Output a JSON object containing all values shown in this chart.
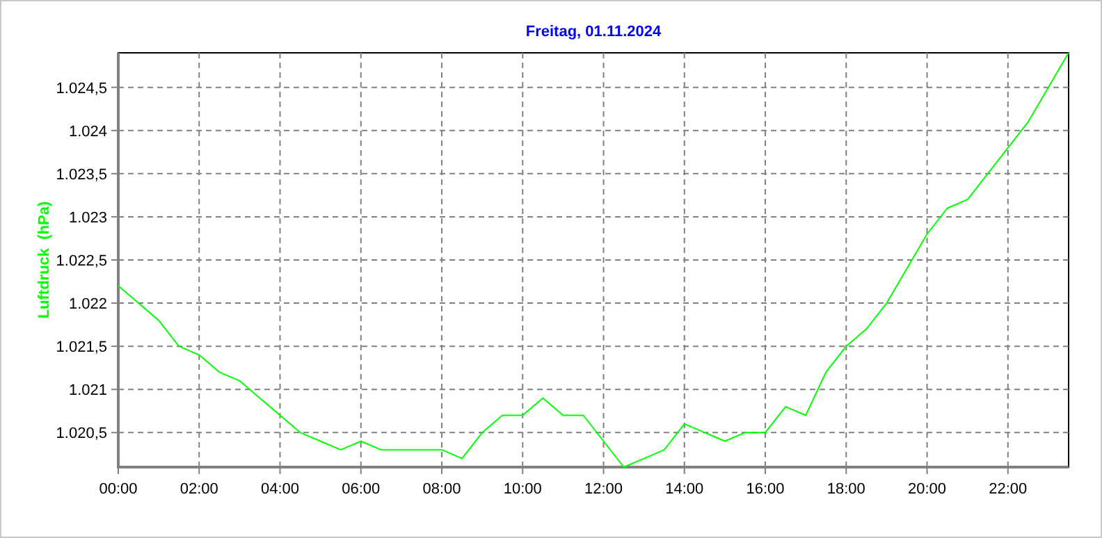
{
  "chart_data": {
    "type": "line",
    "title": "Freitag, 01.11.2024",
    "ylabel": "Luftdruck  (hPa)",
    "x": [
      0,
      0.5,
      1,
      1.5,
      2,
      2.5,
      3,
      3.5,
      4,
      4.5,
      5,
      5.5,
      6,
      6.5,
      7,
      7.5,
      8,
      8.5,
      9,
      9.5,
      10,
      10.5,
      11,
      11.5,
      12,
      12.5,
      13,
      13.5,
      14,
      14.5,
      15,
      15.5,
      16,
      16.5,
      17,
      17.5,
      18,
      18.5,
      19,
      19.5,
      20,
      20.5,
      21,
      21.5,
      22,
      22.5,
      23,
      23.5
    ],
    "series": [
      {
        "color": "#00ff00",
        "values": [
          1022.2,
          1022.0,
          1021.8,
          1021.5,
          1021.4,
          1021.2,
          1021.1,
          1020.9,
          1020.7,
          1020.5,
          1020.4,
          1020.3,
          1020.4,
          1020.3,
          1020.3,
          1020.3,
          1020.3,
          1020.2,
          1020.5,
          1020.7,
          1020.7,
          1020.9,
          1020.7,
          1020.7,
          1020.4,
          1020.1,
          1020.2,
          1020.3,
          1020.6,
          1020.5,
          1020.4,
          1020.5,
          1020.5,
          1020.8,
          1020.7,
          1021.2,
          1021.5,
          1021.7,
          1022.0,
          1022.4,
          1022.8,
          1023.1,
          1023.2,
          1023.5,
          1023.8,
          1024.1,
          1024.5,
          1024.9
        ]
      }
    ],
    "xlim": [
      0,
      23.5
    ],
    "ylim": [
      1020.1,
      1024.9
    ],
    "xticks": [
      {
        "value": 0,
        "label": "00:00"
      },
      {
        "value": 2,
        "label": "02:00"
      },
      {
        "value": 4,
        "label": "04:00"
      },
      {
        "value": 6,
        "label": "06:00"
      },
      {
        "value": 8,
        "label": "08:00"
      },
      {
        "value": 10,
        "label": "10:00"
      },
      {
        "value": 12,
        "label": "12:00"
      },
      {
        "value": 14,
        "label": "14:00"
      },
      {
        "value": 16,
        "label": "16:00"
      },
      {
        "value": 18,
        "label": "18:00"
      },
      {
        "value": 20,
        "label": "20:00"
      },
      {
        "value": 22,
        "label": "22:00"
      }
    ],
    "yticks": [
      {
        "value": 1020.5,
        "label": "1.020,5"
      },
      {
        "value": 1021,
        "label": "1.021"
      },
      {
        "value": 1021.5,
        "label": "1.021,5"
      },
      {
        "value": 1022,
        "label": "1.022"
      },
      {
        "value": 1022.5,
        "label": "1.022,5"
      },
      {
        "value": 1023,
        "label": "1.023"
      },
      {
        "value": 1023.5,
        "label": "1.023,5"
      },
      {
        "value": 1024,
        "label": "1.024"
      },
      {
        "value": 1024.5,
        "label": "1.024,5"
      }
    ],
    "grid": true,
    "marker": "none",
    "line_style": "solid"
  }
}
